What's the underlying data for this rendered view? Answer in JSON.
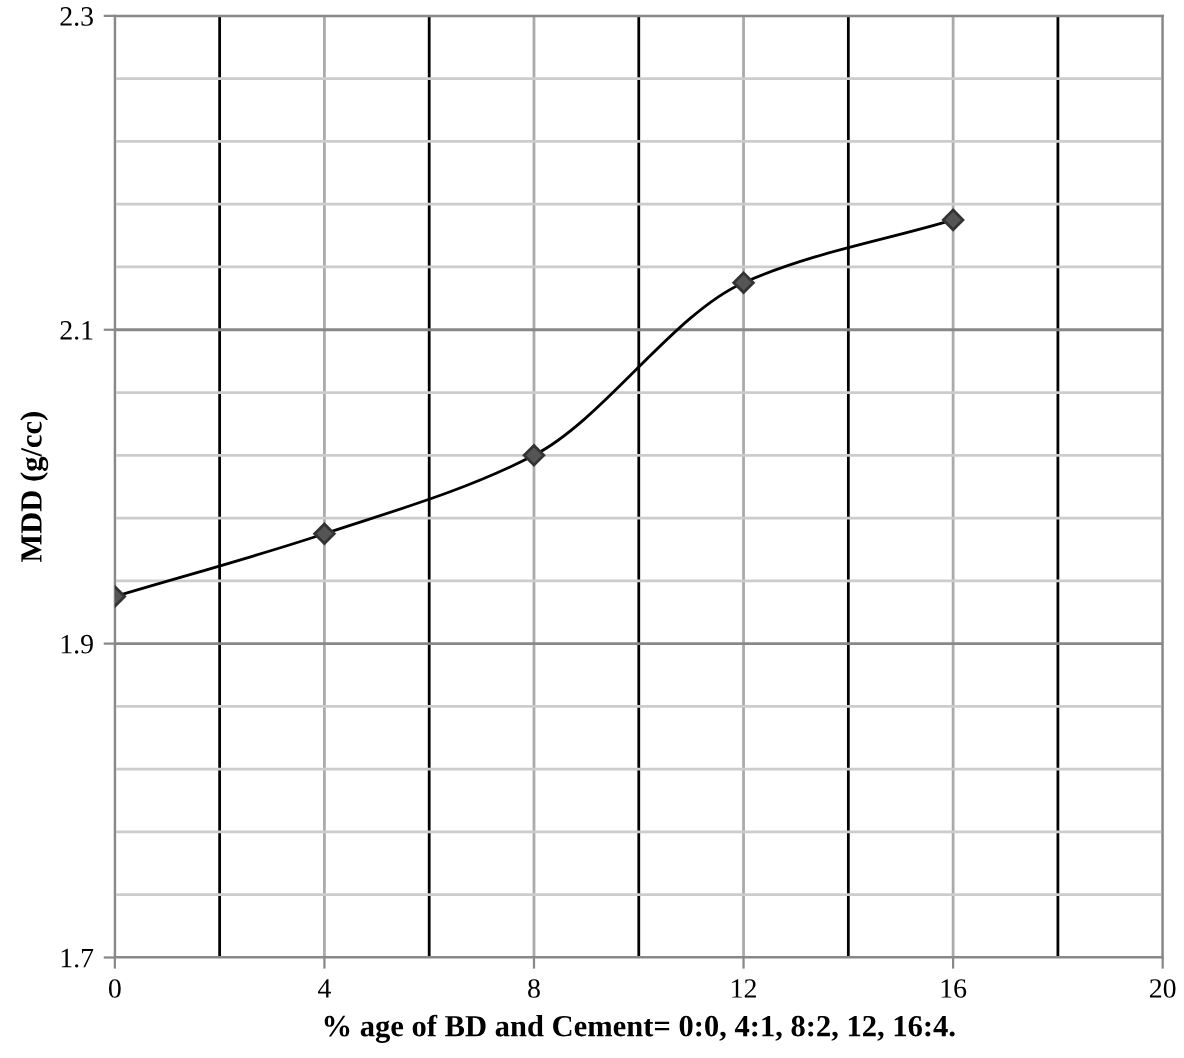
{
  "chart_data": {
    "type": "line",
    "xlabel": "% age of BD and Cement= 0:0, 4:1, 8:2, 12, 16:4.",
    "ylabel": "MDD (g/cc)",
    "x": [
      0,
      4,
      8,
      12,
      16
    ],
    "series": [
      {
        "color": "#000000",
        "values": [
          1.93,
          1.97,
          2.02,
          2.13,
          2.17
        ]
      }
    ],
    "xlim": [
      0,
      20
    ],
    "xticks": [
      0,
      4,
      8,
      12,
      16,
      20
    ],
    "ylim": [
      1.7,
      2.3
    ],
    "yticks": [
      1.7,
      1.9,
      2.1,
      2.3
    ],
    "grid": true,
    "marker": "diamond",
    "line_style": "solid"
  }
}
